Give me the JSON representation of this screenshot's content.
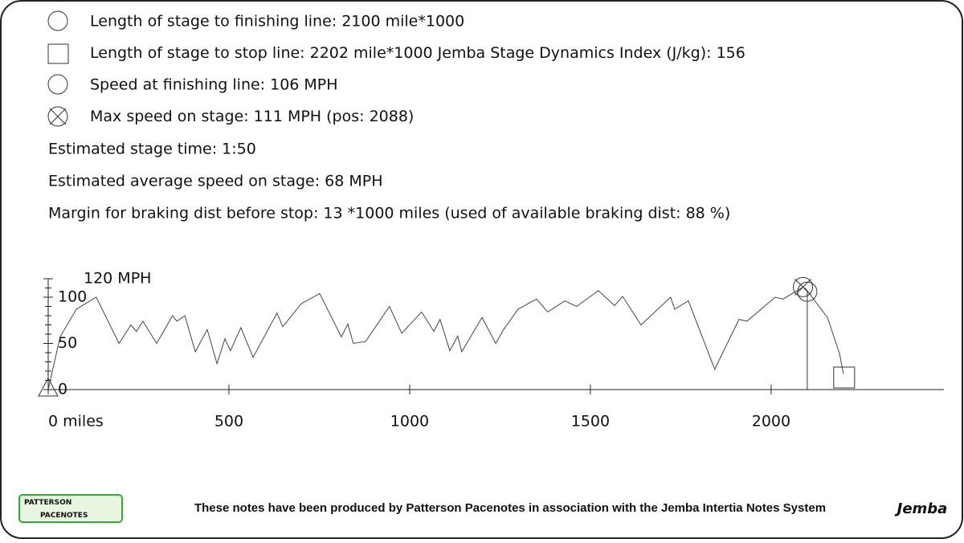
{
  "info": {
    "legend_lines": [
      "Length of stage to finishing line: 2100 mile*1000",
      "Length of stage to stop line: 2202 mile*1000 Jemba Stage Dynamics Index (J/kg): 156",
      "Speed at finishing line: 106 MPH",
      "Max speed on stage: 111 MPH (pos: 2088)"
    ],
    "stat_lines": [
      "Estimated stage time: 1:50",
      "Estimated average speed on stage: 68 MPH",
      "Margin for braking dist before stop: 13 *1000 miles (used of available braking dist: 88 %)"
    ]
  },
  "chart_data": {
    "type": "line",
    "color": "#444444",
    "x": [
      0,
      33,
      78,
      133,
      196,
      229,
      244,
      262,
      300,
      344,
      356,
      378,
      407,
      440,
      467,
      489,
      504,
      533,
      567,
      633,
      649,
      700,
      751,
      811,
      829,
      844,
      878,
      944,
      978,
      1033,
      1067,
      1084,
      1111,
      1133,
      1144,
      1200,
      1238,
      1260,
      1300,
      1351,
      1382,
      1429,
      1462,
      1522,
      1567,
      1589,
      1640,
      1722,
      1733,
      1771,
      1844,
      1911,
      1933,
      2011,
      2033,
      2088,
      2096,
      2156,
      2189,
      2200
    ],
    "values": [
      0,
      57,
      87,
      100,
      50,
      70,
      63,
      74,
      50,
      80,
      74,
      80,
      41,
      65,
      28,
      55,
      42,
      67,
      35,
      83,
      68,
      93,
      104,
      57,
      71,
      50,
      52,
      90,
      61,
      84,
      63,
      76,
      42,
      58,
      41,
      78,
      50,
      65,
      87,
      98,
      84,
      96,
      90,
      107,
      91,
      101,
      70,
      100,
      87,
      96,
      22,
      76,
      74,
      100,
      98,
      111,
      109,
      78,
      39,
      17
    ],
    "xlim": [
      0,
      2478
    ],
    "ylim": [
      0,
      120
    ],
    "xticks": [
      {
        "value": 0,
        "label": "0 miles"
      },
      500,
      1000,
      1500,
      2000
    ],
    "yticks": [
      0,
      50,
      100,
      {
        "value": 120,
        "label": "120 MPH"
      }
    ],
    "yminor_ticks": [
      10,
      20,
      30,
      40,
      60,
      70,
      80,
      90,
      110
    ],
    "finish": {
      "x": 2100,
      "y": 106
    },
    "max_point": {
      "x": 2088,
      "y": 111
    },
    "stop_x": 2202
  },
  "footer": {
    "text": "These notes have been produced by Patterson Pacenotes in association with the Jemba Intertia Notes System",
    "logo_left": [
      "PATTERSON",
      "PACENOTES"
    ],
    "logo_right": "Jemba"
  }
}
